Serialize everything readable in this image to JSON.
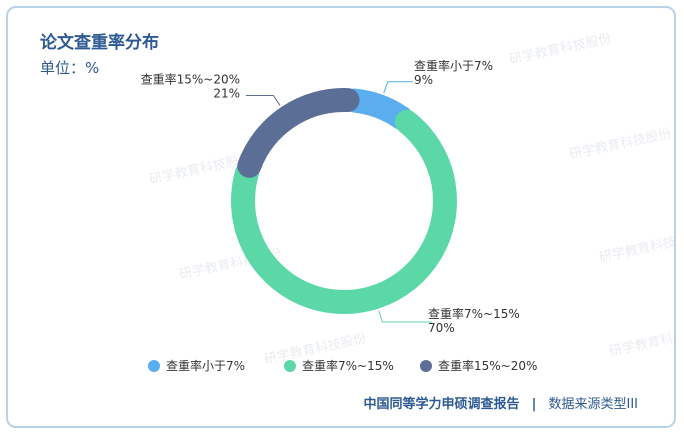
{
  "title": "论文查重率分布",
  "unit_label": "单位：%",
  "watermark": "研学教育科技股份",
  "footer": {
    "source": "中国同等学力申硕调查报告",
    "separator": "|",
    "category": "数据来源类型III"
  },
  "chart_data": {
    "type": "donut",
    "title": "论文查重率分布",
    "unit": "%",
    "categories": [
      "查重率小于7%",
      "查重率7%~15%",
      "查重率15%~20%"
    ],
    "values": [
      9,
      70,
      21
    ],
    "value_labels": [
      "9%",
      "70%",
      "21%"
    ],
    "colors": [
      "#5aaef0",
      "#5cd8a8",
      "#5a6e96"
    ],
    "legend_position": "bottom"
  }
}
